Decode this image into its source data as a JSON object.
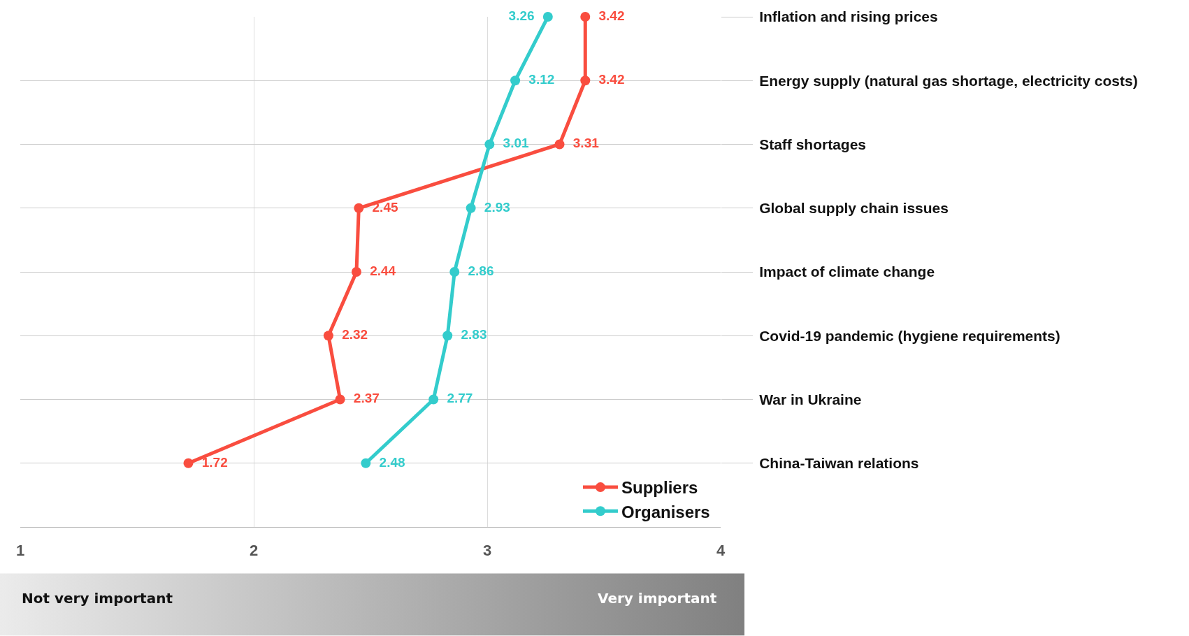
{
  "chart_data": {
    "type": "line",
    "orientation": "horizontal",
    "categories": [
      "Inflation and rising prices",
      "Energy supply (natural gas shortage, electricity costs)",
      "Staff shortages",
      "Global supply chain issues",
      "Impact of climate change",
      "Covid-19 pandemic (hygiene requirements)",
      "War in Ukraine",
      "China-Taiwan relations"
    ],
    "series": [
      {
        "name": "Suppliers",
        "color": "#f94d3f",
        "values": [
          3.42,
          3.42,
          3.31,
          2.45,
          2.44,
          2.32,
          2.37,
          1.72
        ]
      },
      {
        "name": "Organisers",
        "color": "#33cccc",
        "values": [
          3.26,
          3.12,
          3.01,
          2.93,
          2.86,
          2.83,
          2.77,
          2.48
        ]
      }
    ],
    "xlim": [
      1,
      4
    ],
    "xticks": [
      1,
      2,
      3,
      4
    ],
    "grid": true,
    "legend": "bottom right",
    "marker": "circle",
    "line_style": "solid",
    "data_labels": true,
    "annotations": [
      "Not very important",
      "Very important"
    ]
  }
}
